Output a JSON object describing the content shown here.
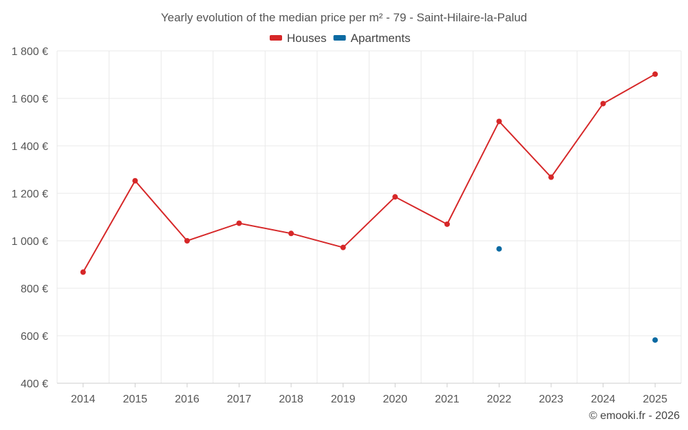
{
  "chart_data": {
    "type": "line",
    "title": "Yearly evolution of the median price per m² - 79 - Saint-Hilaire-la-Palud",
    "x": [
      "2014",
      "2015",
      "2016",
      "2017",
      "2018",
      "2019",
      "2020",
      "2021",
      "2022",
      "2023",
      "2024",
      "2025"
    ],
    "ylim": [
      400,
      1800
    ],
    "yticks": [
      400,
      600,
      800,
      1000,
      1200,
      1400,
      1600,
      1800
    ],
    "ytick_labels": [
      "400 €",
      "600 €",
      "800 €",
      "1 000 €",
      "1 200 €",
      "1 400 €",
      "1 600 €",
      "1 800 €"
    ],
    "grid": true,
    "legend_position": "top-center",
    "series": [
      {
        "name": "Houses",
        "color": "#d62728",
        "values": [
          868,
          1253,
          1000,
          1074,
          1031,
          972,
          1185,
          1070,
          1503,
          1268,
          1578,
          1702
        ]
      },
      {
        "name": "Apartments",
        "color": "#0b6aa2",
        "values": [
          null,
          null,
          null,
          null,
          null,
          null,
          null,
          null,
          966,
          null,
          null,
          582
        ]
      }
    ]
  },
  "credit": "© emooki.fr - 2026"
}
